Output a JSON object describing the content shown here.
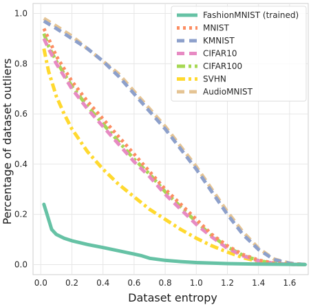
{
  "chart_data": {
    "type": "line",
    "title": "",
    "xlabel": "Dataset entropy",
    "ylabel": "Percentage of dataset outliers",
    "xlim": [
      -0.05,
      1.72
    ],
    "ylim": [
      -0.04,
      1.04
    ],
    "xticks": [
      "0.0",
      "0.2",
      "0.4",
      "0.6",
      "0.8",
      "1.0",
      "1.2",
      "1.4",
      "1.6"
    ],
    "yticks": [
      "0.0",
      "0.2",
      "0.4",
      "0.6",
      "0.8",
      "1.0"
    ],
    "grid": true,
    "legend_position": "top-right",
    "series": [
      {
        "name": "FashionMNIST (trained)",
        "color": "#66c2a5",
        "dash": "solid",
        "points": [
          [
            0.02,
            0.24
          ],
          [
            0.03,
            0.22
          ],
          [
            0.05,
            0.18
          ],
          [
            0.07,
            0.14
          ],
          [
            0.1,
            0.12
          ],
          [
            0.15,
            0.105
          ],
          [
            0.2,
            0.095
          ],
          [
            0.3,
            0.08
          ],
          [
            0.4,
            0.068
          ],
          [
            0.5,
            0.055
          ],
          [
            0.6,
            0.042
          ],
          [
            0.65,
            0.035
          ],
          [
            0.7,
            0.025
          ],
          [
            0.8,
            0.017
          ],
          [
            0.9,
            0.012
          ],
          [
            1.0,
            0.008
          ],
          [
            1.2,
            0.004
          ],
          [
            1.4,
            0.002
          ],
          [
            1.6,
            0.001
          ],
          [
            1.7,
            0.0
          ]
        ]
      },
      {
        "name": "MNIST",
        "color": "#fc8d62",
        "dash": "dot",
        "points": [
          [
            0.02,
            0.94
          ],
          [
            0.05,
            0.9
          ],
          [
            0.1,
            0.83
          ],
          [
            0.2,
            0.73
          ],
          [
            0.3,
            0.65
          ],
          [
            0.4,
            0.58
          ],
          [
            0.5,
            0.51
          ],
          [
            0.6,
            0.44
          ],
          [
            0.7,
            0.37
          ],
          [
            0.8,
            0.3
          ],
          [
            0.9,
            0.24
          ],
          [
            1.0,
            0.18
          ],
          [
            1.1,
            0.12
          ],
          [
            1.2,
            0.075
          ],
          [
            1.3,
            0.04
          ],
          [
            1.4,
            0.018
          ],
          [
            1.5,
            0.006
          ],
          [
            1.6,
            0.002
          ],
          [
            1.7,
            0.0
          ]
        ]
      },
      {
        "name": "KMNIST",
        "color": "#8da0cb",
        "dash": "dash",
        "points": [
          [
            0.02,
            0.97
          ],
          [
            0.1,
            0.94
          ],
          [
            0.2,
            0.9
          ],
          [
            0.3,
            0.86
          ],
          [
            0.4,
            0.81
          ],
          [
            0.5,
            0.75
          ],
          [
            0.6,
            0.68
          ],
          [
            0.7,
            0.61
          ],
          [
            0.8,
            0.54
          ],
          [
            0.9,
            0.46
          ],
          [
            1.0,
            0.38
          ],
          [
            1.1,
            0.29
          ],
          [
            1.2,
            0.2
          ],
          [
            1.3,
            0.12
          ],
          [
            1.4,
            0.06
          ],
          [
            1.5,
            0.02
          ],
          [
            1.6,
            0.005
          ],
          [
            1.7,
            0.0
          ]
        ]
      },
      {
        "name": "CIFAR10",
        "color": "#e78ac3",
        "dash": "dash",
        "points": [
          [
            0.02,
            0.9
          ],
          [
            0.05,
            0.86
          ],
          [
            0.1,
            0.8
          ],
          [
            0.2,
            0.7
          ],
          [
            0.3,
            0.62
          ],
          [
            0.4,
            0.55
          ],
          [
            0.5,
            0.48
          ],
          [
            0.6,
            0.41
          ],
          [
            0.7,
            0.35
          ],
          [
            0.8,
            0.28
          ],
          [
            0.9,
            0.22
          ],
          [
            1.0,
            0.16
          ],
          [
            1.1,
            0.11
          ],
          [
            1.2,
            0.065
          ],
          [
            1.3,
            0.035
          ],
          [
            1.4,
            0.015
          ],
          [
            1.5,
            0.005
          ],
          [
            1.6,
            0.001
          ],
          [
            1.7,
            0.0
          ]
        ]
      },
      {
        "name": "CIFAR100",
        "color": "#a6d854",
        "dash": "dashdot",
        "points": [
          [
            0.02,
            0.92
          ],
          [
            0.05,
            0.87
          ],
          [
            0.1,
            0.81
          ],
          [
            0.2,
            0.71
          ],
          [
            0.3,
            0.63
          ],
          [
            0.4,
            0.56
          ],
          [
            0.5,
            0.49
          ],
          [
            0.6,
            0.42
          ],
          [
            0.7,
            0.36
          ],
          [
            0.8,
            0.29
          ],
          [
            0.9,
            0.23
          ],
          [
            1.0,
            0.17
          ],
          [
            1.1,
            0.115
          ],
          [
            1.2,
            0.07
          ],
          [
            1.3,
            0.037
          ],
          [
            1.4,
            0.016
          ],
          [
            1.5,
            0.005
          ],
          [
            1.6,
            0.001
          ],
          [
            1.7,
            0.0
          ]
        ]
      },
      {
        "name": "SVHN",
        "color": "#ffd92f",
        "dash": "dashdot",
        "points": [
          [
            0.02,
            0.86
          ],
          [
            0.05,
            0.77
          ],
          [
            0.1,
            0.67
          ],
          [
            0.15,
            0.6
          ],
          [
            0.2,
            0.54
          ],
          [
            0.3,
            0.45
          ],
          [
            0.4,
            0.38
          ],
          [
            0.5,
            0.32
          ],
          [
            0.6,
            0.27
          ],
          [
            0.7,
            0.22
          ],
          [
            0.8,
            0.18
          ],
          [
            0.9,
            0.14
          ],
          [
            1.0,
            0.105
          ],
          [
            1.1,
            0.075
          ],
          [
            1.2,
            0.05
          ],
          [
            1.3,
            0.028
          ],
          [
            1.4,
            0.012
          ],
          [
            1.5,
            0.004
          ],
          [
            1.6,
            0.001
          ],
          [
            1.7,
            0.0
          ]
        ]
      },
      {
        "name": "AudioMNIST",
        "color": "#e5c494",
        "dash": "dash",
        "points": [
          [
            0.02,
            0.98
          ],
          [
            0.1,
            0.95
          ],
          [
            0.2,
            0.91
          ],
          [
            0.3,
            0.86
          ],
          [
            0.4,
            0.81
          ],
          [
            0.5,
            0.76
          ],
          [
            0.6,
            0.69
          ],
          [
            0.7,
            0.62
          ],
          [
            0.8,
            0.55
          ],
          [
            0.9,
            0.47
          ],
          [
            1.0,
            0.39
          ],
          [
            1.1,
            0.3
          ],
          [
            1.2,
            0.21
          ],
          [
            1.3,
            0.13
          ],
          [
            1.4,
            0.065
          ],
          [
            1.5,
            0.022
          ],
          [
            1.6,
            0.006
          ],
          [
            1.7,
            0.0
          ]
        ]
      }
    ]
  }
}
